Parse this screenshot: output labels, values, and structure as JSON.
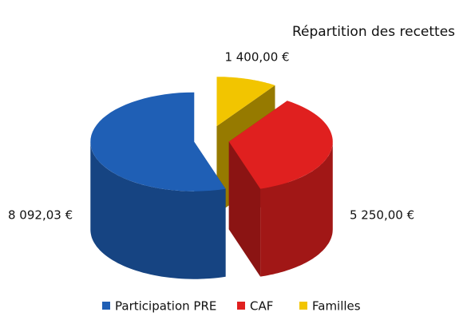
{
  "chart_data": {
    "type": "pie3d",
    "title": "Répartition des recettes",
    "categories": [
      "Participation PRE",
      "CAF",
      "Familles"
    ],
    "values": [
      8092.03,
      5250,
      1400
    ],
    "value_labels": [
      "8 092,03 €",
      "5 250,00 €",
      "1 400,00 €"
    ],
    "colors": [
      "#1f5fb5",
      "#e0201f",
      "#f2c500"
    ],
    "legend": "bottom"
  }
}
